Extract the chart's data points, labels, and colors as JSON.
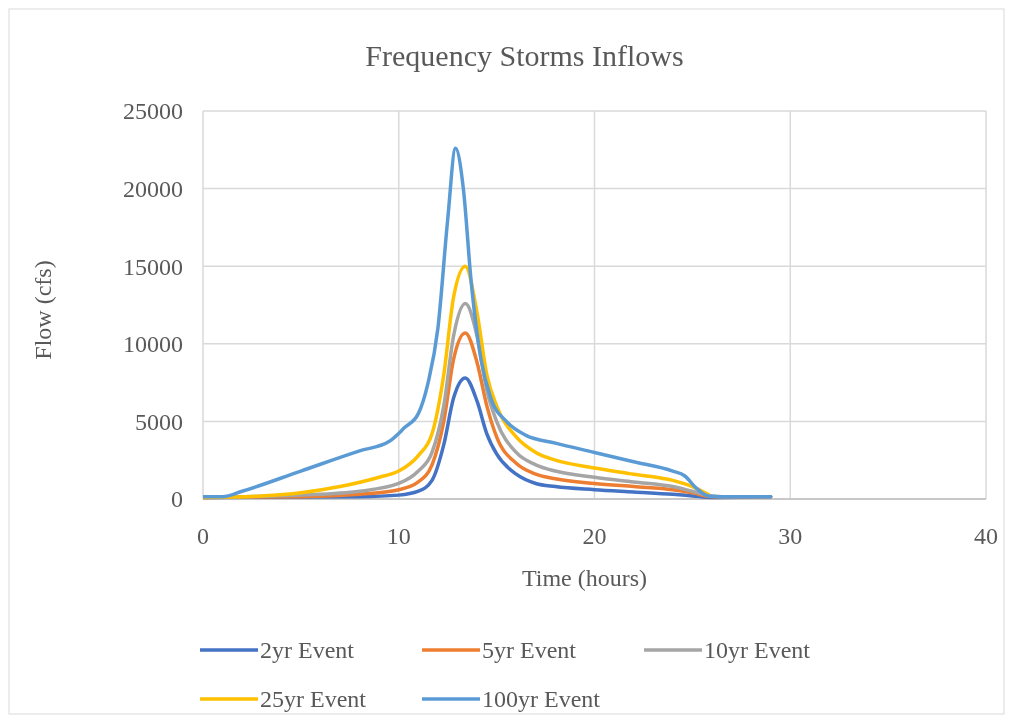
{
  "chart_data": {
    "type": "line",
    "title": "Frequency Storms Inflows",
    "xlabel": "Time (hours)",
    "ylabel": "Flow (cfs)",
    "xlim": [
      0,
      40
    ],
    "xticks": [
      0,
      10,
      20,
      30,
      40
    ],
    "ylim": [
      0,
      25000
    ],
    "yticks": [
      0,
      5000,
      10000,
      15000,
      20000,
      25000
    ],
    "grid": true,
    "legend": "bottom",
    "marker": "none",
    "line_style": "solid",
    "series": [
      {
        "name": "2yr Event",
        "color": "#4472c4",
        "x": [
          0,
          8,
          10,
          11,
          11.7,
          12.3,
          12.8,
          13.4,
          14,
          14.5,
          15,
          16,
          17,
          18,
          20,
          22,
          24,
          25,
          26,
          29
        ],
        "values": [
          100,
          150,
          250,
          500,
          1200,
          3500,
          6500,
          7800,
          6300,
          4200,
          2900,
          1600,
          1000,
          800,
          600,
          450,
          300,
          200,
          100,
          150
        ]
      },
      {
        "name": "5yr Event",
        "color": "#ed7d31",
        "x": [
          0,
          5,
          8,
          10,
          11,
          11.7,
          12.3,
          12.8,
          13.4,
          14,
          14.5,
          15,
          16,
          17,
          18,
          20,
          22,
          24,
          25,
          26,
          29
        ],
        "values": [
          100,
          150,
          300,
          600,
          1100,
          2200,
          5000,
          9000,
          10700,
          8800,
          6000,
          4000,
          2300,
          1600,
          1300,
          1000,
          800,
          600,
          400,
          150,
          150
        ]
      },
      {
        "name": "10yr Event",
        "color": "#a5a5a5",
        "x": [
          0,
          5,
          8,
          10,
          11,
          11.7,
          12.3,
          12.8,
          13.4,
          14,
          14.5,
          15,
          16,
          17,
          18,
          20,
          22,
          24,
          25,
          26,
          26.5,
          29
        ],
        "values": [
          100,
          250,
          500,
          1000,
          1800,
          3000,
          6000,
          10500,
          12600,
          10500,
          7000,
          5000,
          3000,
          2200,
          1800,
          1400,
          1100,
          800,
          500,
          200,
          150,
          150
        ]
      },
      {
        "name": "25yr Event",
        "color": "#ffc000",
        "x": [
          0,
          3,
          5,
          7,
          9,
          10,
          11,
          11.7,
          12.3,
          12.8,
          13.4,
          14,
          14.5,
          15,
          16,
          17,
          18,
          20,
          22,
          24,
          25,
          25.8
        ],
        "values": [
          100,
          200,
          400,
          800,
          1400,
          1800,
          2800,
          4200,
          8000,
          13000,
          15000,
          12000,
          8000,
          6000,
          4000,
          3000,
          2500,
          2000,
          1600,
          1200,
          800,
          300
        ]
      },
      {
        "name": "100yr Event",
        "color": "#5b9bd5",
        "x": [
          0,
          1,
          2,
          5,
          8,
          9.5,
          10.3,
          11,
          11.5,
          12,
          12.5,
          12.9,
          13.3,
          13.7,
          14.2,
          14.7,
          15.5,
          16.5,
          18,
          20,
          22,
          24,
          24.6,
          25.2,
          25.8,
          26.5,
          29
        ],
        "values": [
          150,
          150,
          500,
          1800,
          3100,
          3700,
          4600,
          5500,
          7500,
          11000,
          18000,
          22600,
          20000,
          14000,
          9000,
          6500,
          5000,
          4100,
          3600,
          3000,
          2400,
          1800,
          1500,
          700,
          200,
          150,
          150
        ]
      }
    ]
  }
}
